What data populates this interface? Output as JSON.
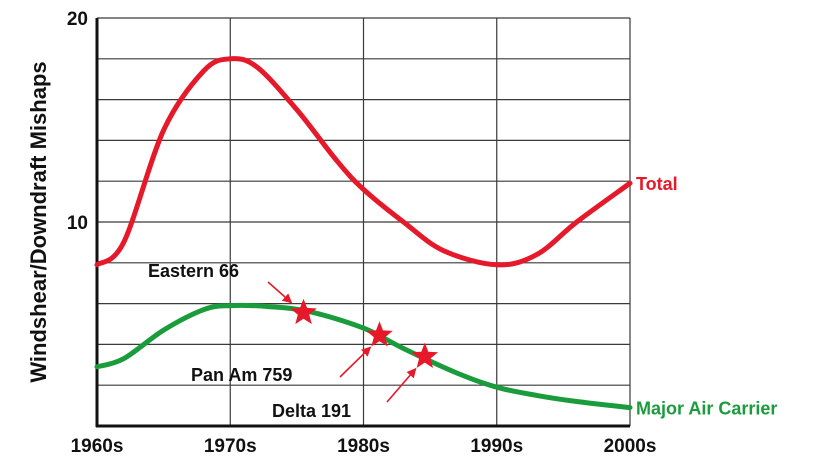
{
  "chart_data": {
    "type": "line",
    "title": "",
    "xlabel": "",
    "ylabel": "Windshear/Downdraft Mishaps",
    "x_ticks": [
      "1960s",
      "1970s",
      "1980s",
      "1990s",
      "2000s"
    ],
    "y_ticks": [
      "10",
      "20"
    ],
    "ylim": [
      0,
      20
    ],
    "grid": true,
    "series": [
      {
        "name": "Total",
        "color": "#e5192a",
        "points": [
          [
            1960,
            7.9
          ],
          [
            1962,
            9
          ],
          [
            1965,
            14.5
          ],
          [
            1968,
            17.4
          ],
          [
            1970,
            18
          ],
          [
            1972,
            17.6
          ],
          [
            1975,
            15.5
          ],
          [
            1978,
            13
          ],
          [
            1980,
            11.6
          ],
          [
            1983,
            10
          ],
          [
            1986,
            8.6
          ],
          [
            1990,
            7.9
          ],
          [
            1993,
            8.4
          ],
          [
            1996,
            10
          ],
          [
            2000,
            11.9
          ]
        ]
      },
      {
        "name": "Major Air Carrier",
        "color": "#1a9c3c",
        "points": [
          [
            1960,
            2.9
          ],
          [
            1962,
            3.3
          ],
          [
            1965,
            4.7
          ],
          [
            1968,
            5.7
          ],
          [
            1970,
            5.9
          ],
          [
            1973,
            5.85
          ],
          [
            1976,
            5.6
          ],
          [
            1980,
            4.8
          ],
          [
            1983,
            3.8
          ],
          [
            1987,
            2.6
          ],
          [
            1990,
            1.9
          ],
          [
            1993,
            1.5
          ],
          [
            1996,
            1.2
          ],
          [
            2000,
            0.9
          ]
        ]
      }
    ],
    "annotations": [
      {
        "label": "Eastern 66",
        "x": 1975.5,
        "y": 5.55
      },
      {
        "label": "Pan Am 759",
        "x": 1981.2,
        "y": 4.45
      },
      {
        "label": "Delta 191",
        "x": 1984.6,
        "y": 3.4
      }
    ],
    "star_color": "#e5192a"
  }
}
